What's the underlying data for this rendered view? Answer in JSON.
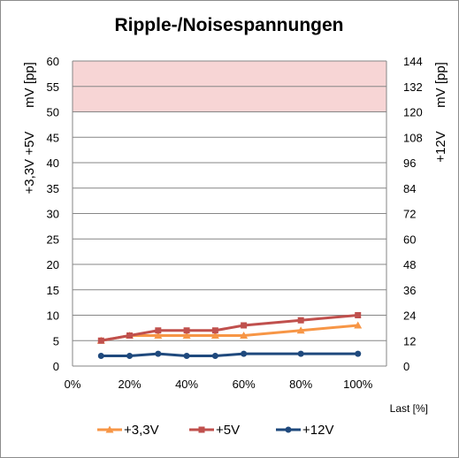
{
  "chart_data": {
    "type": "line",
    "title": "Ripple-/Noisespannungen",
    "x": [
      10,
      20,
      30,
      40,
      50,
      60,
      80,
      100
    ],
    "xlim": [
      0,
      110
    ],
    "x_ticks": [
      "0%",
      "20%",
      "40%",
      "60%",
      "80%",
      "100%"
    ],
    "xlabel": "Last [%]",
    "ylabel_left_voltage": "+3,3V +5V",
    "ylabel_left_unit": "mV [pp]",
    "ylabel_right_voltage": "+12V",
    "ylabel_right_unit": "mV [pp]",
    "ylim_left": [
      0,
      60
    ],
    "ylim_right": [
      0,
      144
    ],
    "y_ticks_left": [
      "0",
      "5",
      "10",
      "15",
      "20",
      "25",
      "30",
      "35",
      "40",
      "45",
      "50",
      "55",
      "60"
    ],
    "y_ticks_right": [
      "0",
      "12",
      "24",
      "36",
      "48",
      "60",
      "72",
      "84",
      "96",
      "108",
      "120",
      "132",
      "144"
    ],
    "limit_band_left": [
      50,
      60
    ],
    "grid": "horizontal",
    "legend_position": "bottom",
    "series": [
      {
        "name": "+3,3V",
        "axis": "left",
        "marker": "triangle",
        "color": "#f79646",
        "values": [
          5,
          6,
          6,
          6,
          6,
          6,
          7,
          8
        ]
      },
      {
        "name": "+5V",
        "axis": "left",
        "marker": "square",
        "color": "#c0504d",
        "values": [
          5,
          6,
          7,
          7,
          7,
          8,
          9,
          10
        ]
      },
      {
        "name": "+12V",
        "axis": "right",
        "marker": "circle",
        "color": "#1f497d",
        "values": [
          4.8,
          4.8,
          5.8,
          4.8,
          4.8,
          5.8,
          5.8,
          5.8
        ]
      }
    ],
    "colors": {
      "band": "#f7d5d5",
      "grid": "#868686",
      "axis": "#868686"
    }
  }
}
